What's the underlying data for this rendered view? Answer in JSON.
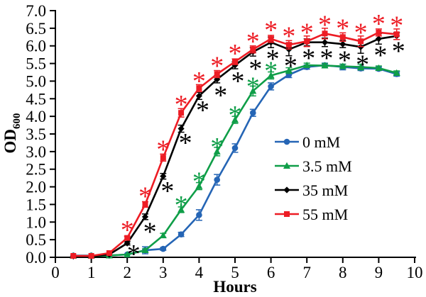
{
  "chart_data": {
    "type": "line",
    "title": "",
    "xlabel": "Hours",
    "ylabel": "OD",
    "ylabel_subscript": "600",
    "xlim": [
      0,
      10
    ],
    "ylim": [
      0,
      7
    ],
    "xticks": [
      0,
      1,
      2,
      3,
      4,
      5,
      6,
      7,
      8,
      9,
      10
    ],
    "yticks": [
      0.0,
      0.5,
      1.0,
      1.5,
      2.0,
      2.5,
      3.0,
      3.5,
      4.0,
      4.5,
      5.0,
      5.5,
      6.0,
      6.5,
      7.0
    ],
    "grid": false,
    "legend_position": "inside-right-middle",
    "axis_color": "#000000",
    "background_color": "#ffffff",
    "x": [
      0.5,
      1,
      1.5,
      2,
      2.5,
      3,
      3.5,
      4,
      4.5,
      5,
      5.5,
      6,
      6.5,
      7,
      7.5,
      8,
      8.5,
      9,
      9.5
    ],
    "series": [
      {
        "name": "0 mM",
        "color": "#2565b5",
        "marker": "circle",
        "values": [
          0.05,
          0.05,
          0.05,
          0.08,
          0.2,
          0.24,
          0.65,
          1.2,
          2.2,
          3.1,
          4.1,
          4.85,
          5.18,
          5.4,
          5.45,
          5.4,
          5.36,
          5.35,
          5.2
        ],
        "errors": [
          0.02,
          0.02,
          0.02,
          0.03,
          0.1,
          0.04,
          0.06,
          0.15,
          0.15,
          0.12,
          0.1,
          0.1,
          0.08,
          0.06,
          0.06,
          0.08,
          0.06,
          0.05,
          0.06
        ]
      },
      {
        "name": "3.5 mM",
        "color": "#0f9e48",
        "marker": "triangle",
        "values": [
          0.04,
          0.04,
          0.05,
          0.08,
          0.2,
          0.62,
          1.35,
          2.02,
          3.0,
          3.9,
          4.72,
          5.16,
          5.3,
          5.45,
          5.44,
          5.42,
          5.4,
          5.37,
          5.23
        ],
        "errors": [
          0.02,
          0.02,
          0.02,
          0.03,
          0.04,
          0.06,
          0.08,
          0.1,
          0.12,
          0.1,
          0.14,
          0.1,
          0.08,
          0.06,
          0.06,
          0.06,
          0.08,
          0.06,
          0.06
        ]
      },
      {
        "name": "35 mM",
        "color": "#000000",
        "marker": "diamond",
        "values": [
          0.03,
          0.03,
          0.08,
          0.4,
          1.15,
          2.3,
          3.65,
          4.58,
          5.05,
          5.45,
          5.83,
          6.1,
          5.9,
          6.1,
          6.1,
          6.05,
          5.97,
          6.2,
          6.28
        ],
        "errors": [
          0.02,
          0.02,
          0.03,
          0.05,
          0.08,
          0.08,
          0.1,
          0.1,
          0.1,
          0.1,
          0.12,
          0.15,
          0.18,
          0.1,
          0.12,
          0.1,
          0.18,
          0.15,
          0.1
        ]
      },
      {
        "name": "55 mM",
        "color": "#ed1c24",
        "marker": "square",
        "values": [
          0.04,
          0.04,
          0.12,
          0.55,
          1.5,
          2.83,
          4.1,
          4.8,
          5.2,
          5.55,
          5.9,
          6.2,
          6.03,
          6.13,
          6.35,
          6.25,
          6.13,
          6.38,
          6.33
        ],
        "errors": [
          0.02,
          0.02,
          0.03,
          0.05,
          0.08,
          0.1,
          0.12,
          0.1,
          0.1,
          0.08,
          0.1,
          0.1,
          0.12,
          0.15,
          0.15,
          0.12,
          0.15,
          0.1,
          0.15
        ]
      }
    ],
    "significance_marks": [
      {
        "series": "55 mM",
        "symbol": "*",
        "color": "#ed1c24",
        "points": [
          {
            "x": 2.0,
            "y": 0.93
          },
          {
            "x": 2.5,
            "y": 1.88
          },
          {
            "x": 3.0,
            "y": 3.21
          },
          {
            "x": 3.5,
            "y": 4.49
          },
          {
            "x": 4.0,
            "y": 5.15
          },
          {
            "x": 4.5,
            "y": 5.58
          },
          {
            "x": 5.0,
            "y": 5.93
          },
          {
            "x": 5.5,
            "y": 6.28
          },
          {
            "x": 6.0,
            "y": 6.6
          },
          {
            "x": 6.5,
            "y": 6.43
          },
          {
            "x": 7.0,
            "y": 6.53
          },
          {
            "x": 7.5,
            "y": 6.75
          },
          {
            "x": 8.0,
            "y": 6.65
          },
          {
            "x": 8.5,
            "y": 6.53
          },
          {
            "x": 9.0,
            "y": 6.78
          },
          {
            "x": 9.5,
            "y": 6.73
          }
        ]
      },
      {
        "series": "35 mM",
        "symbol": "*",
        "color": "#000000",
        "points": [
          {
            "x": 2.18,
            "y": 0.24
          },
          {
            "x": 2.63,
            "y": 0.88
          },
          {
            "x": 3.12,
            "y": 2.03
          },
          {
            "x": 3.62,
            "y": 3.4
          },
          {
            "x": 4.1,
            "y": 4.32
          },
          {
            "x": 4.6,
            "y": 4.75
          },
          {
            "x": 5.08,
            "y": 5.15
          },
          {
            "x": 5.57,
            "y": 5.5
          },
          {
            "x": 6.05,
            "y": 5.78
          },
          {
            "x": 6.55,
            "y": 5.58
          },
          {
            "x": 7.05,
            "y": 5.8
          },
          {
            "x": 7.55,
            "y": 5.8
          },
          {
            "x": 8.05,
            "y": 5.74
          },
          {
            "x": 8.55,
            "y": 5.62
          },
          {
            "x": 9.05,
            "y": 5.88
          },
          {
            "x": 9.55,
            "y": 6.0
          }
        ]
      },
      {
        "series": "3.5 mM",
        "symbol": "*",
        "color": "#0f9e48",
        "points": [
          {
            "x": 3.5,
            "y": 1.63
          },
          {
            "x": 4.0,
            "y": 2.3
          },
          {
            "x": 4.5,
            "y": 3.28
          },
          {
            "x": 5.0,
            "y": 4.18
          },
          {
            "x": 5.5,
            "y": 5.0
          },
          {
            "x": 6.0,
            "y": 5.44
          }
        ]
      }
    ]
  }
}
